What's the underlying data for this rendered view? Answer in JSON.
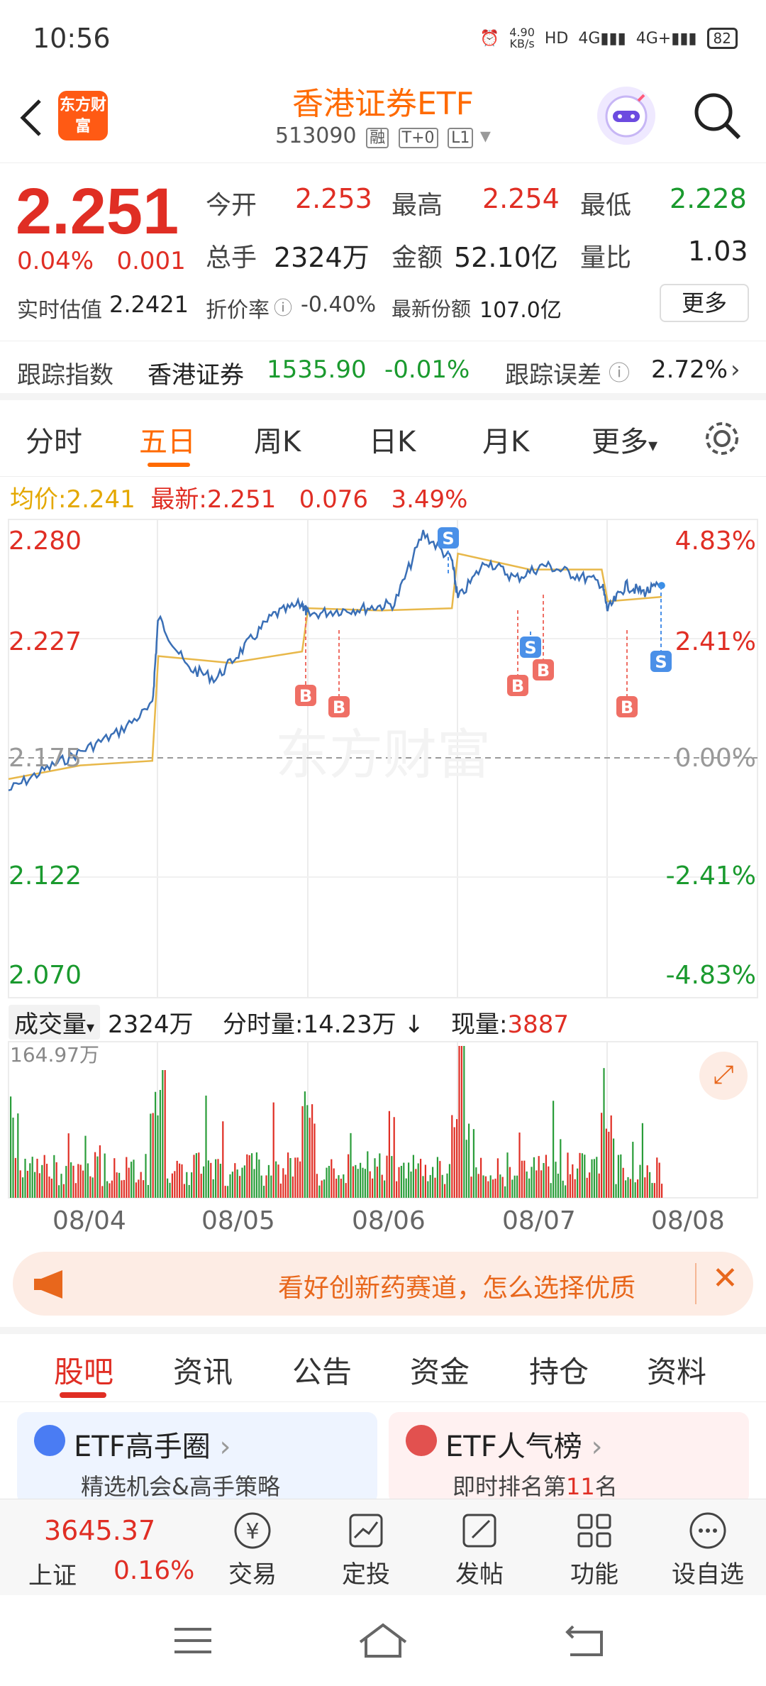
{
  "status": {
    "time": "10:56",
    "net_speed_value": "4.90",
    "net_speed_unit": "KB/s",
    "battery": "82"
  },
  "header": {
    "logo_text": "东方财富",
    "title": "香港证券ETF",
    "code": "513090",
    "tags": [
      "融",
      "T+0",
      "L1"
    ]
  },
  "quote": {
    "price": "2.251",
    "change_pct": "0.04%",
    "change_amt": "0.001",
    "open_label": "今开",
    "open": "2.253",
    "high_label": "最高",
    "high": "2.254",
    "low_label": "最低",
    "low": "2.228",
    "vol_label": "总手",
    "vol": "2324万",
    "amount_label": "金额",
    "amount": "52.10亿",
    "ratio_label": "量比",
    "ratio": "1.03",
    "est_label": "实时估值",
    "est": "2.2421",
    "premium_label": "折价率",
    "premium": "-0.40%",
    "shares_label": "最新份额",
    "shares": "107.0亿",
    "more_label": "更多"
  },
  "tracking": {
    "label": "跟踪指数",
    "index_name": "香港证券",
    "index_value": "1535.90",
    "index_change": "-0.01%",
    "error_label": "跟踪误差",
    "error_value": "2.72%"
  },
  "chart_tabs": [
    "分时",
    "五日",
    "周K",
    "日K",
    "月K",
    "更多"
  ],
  "chart_info": {
    "avg_label": "均价:",
    "avg_value": "2.241",
    "latest_label": "最新:",
    "latest_value": "2.251",
    "change": "0.076",
    "change_pct": "3.49%"
  },
  "chart_data": {
    "type": "line",
    "series": [
      {
        "name": "均价"
      }
    ],
    "categories": [
      "08/04",
      "08/05",
      "08/06",
      "08/07",
      "08/08"
    ],
    "ylim": [
      2.07,
      2.28
    ],
    "y_ticks": [
      "2.280",
      "2.227",
      "2.175",
      "2.122",
      "2.070"
    ],
    "y_ticks_pct": [
      "4.83%",
      "2.41%",
      "0.00%",
      "-2.41%",
      "-4.83%"
    ],
    "price_points": [
      [
        "08/04",
        2.161
      ],
      [
        "08/04",
        2.17
      ],
      [
        "08/04",
        2.178
      ],
      [
        "08/04",
        2.186
      ],
      [
        "08/04",
        2.198
      ],
      [
        "08/05",
        2.237
      ],
      [
        "08/05",
        2.215
      ],
      [
        "08/05",
        2.21
      ],
      [
        "08/05",
        2.224
      ],
      [
        "08/05",
        2.238
      ],
      [
        "08/05",
        2.243
      ],
      [
        "08/06",
        2.238
      ],
      [
        "08/06",
        2.24
      ],
      [
        "08/06",
        2.241
      ],
      [
        "08/06",
        2.243
      ],
      [
        "08/06",
        2.274
      ],
      [
        "08/06",
        2.262
      ],
      [
        "08/07",
        2.245
      ],
      [
        "08/07",
        2.262
      ],
      [
        "08/07",
        2.254
      ],
      [
        "08/07",
        2.26
      ],
      [
        "08/07",
        2.256
      ],
      [
        "08/07",
        2.252
      ],
      [
        "08/08",
        2.24
      ],
      [
        "08/08",
        2.251
      ],
      [
        "08/08",
        2.248
      ],
      [
        "08/08",
        2.251
      ]
    ],
    "avg_points": [
      [
        "08/04",
        2.166
      ],
      [
        "08/04",
        2.172
      ],
      [
        "08/04",
        2.174
      ],
      [
        "08/05",
        2.22
      ],
      [
        "08/05",
        2.217
      ],
      [
        "08/05",
        2.222
      ],
      [
        "08/06",
        2.241
      ],
      [
        "08/06",
        2.24
      ],
      [
        "08/06",
        2.241
      ],
      [
        "08/07",
        2.265
      ],
      [
        "08/07",
        2.258
      ],
      [
        "08/07",
        2.258
      ],
      [
        "08/08",
        2.244
      ],
      [
        "08/08",
        2.246
      ]
    ],
    "markers": [
      "S",
      "S",
      "S",
      "B",
      "B",
      "B",
      "B",
      "B"
    ],
    "watermark": "东方财富"
  },
  "volume": {
    "label": "成交量",
    "total": "2324万",
    "tick_label": "分时量:",
    "tick_value": "14.23万",
    "now_label": "现量:",
    "now_value": "3887",
    "max_label": "164.97万"
  },
  "banner": {
    "text": "看好创新药赛道，怎么选择优质"
  },
  "bottom_tabs": [
    "股吧",
    "资讯",
    "公告",
    "资金",
    "持仓",
    "资料"
  ],
  "cards": [
    {
      "title": "ETF高手圈",
      "subtitle": "精选机会&高手策略"
    },
    {
      "title": "ETF人气榜",
      "subtitle_prefix": "即时排名第",
      "rank": "11",
      "subtitle_suffix": "名"
    }
  ],
  "bottom_nav": {
    "index_value": "3645.37",
    "index_name": "上证",
    "index_change": "0.16%",
    "items": [
      "交易",
      "定投",
      "发帖",
      "功能",
      "设自选"
    ]
  }
}
